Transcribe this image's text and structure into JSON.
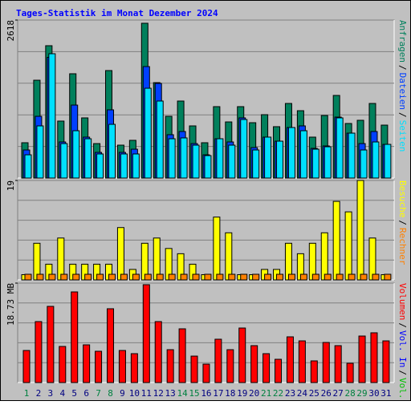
{
  "chart_data": [
    {
      "type": "bar",
      "title": "Tages-Statistik im Monat Dezember 2024",
      "ylim": [
        0,
        2618
      ],
      "yticks": [
        2618
      ],
      "grid_divisions": 5,
      "series": [
        {
          "name": "Anfragen",
          "color": "#00805c",
          "values": [
            585,
            1621,
            2193,
            944,
            1728,
            997,
            571,
            1781,
            545,
            625,
            2565,
            1581,
            1023,
            1276,
            864,
            585,
            1183,
            930,
            1183,
            917,
            1050,
            851,
            1236,
            1116,
            678,
            1037,
            1369,
            904,
            957,
            1236,
            877
          ]
        },
        {
          "name": "Dateien",
          "color": "#0040ff",
          "values": [
            465,
            1023,
            2000,
            598,
            1209,
            678,
            425,
            1130,
            425,
            478,
            1847,
            1568,
            718,
            771,
            571,
            385,
            651,
            598,
            997,
            505,
            678,
            611,
            837,
            864,
            492,
            532,
            1010,
            744,
            571,
            771,
            558
          ]
        },
        {
          "name": "Seiten",
          "color": "#00e0ff",
          "values": [
            385,
            864,
            2060,
            571,
            784,
            651,
            399,
            890,
            399,
            399,
            1488,
            1276,
            651,
            665,
            545,
            372,
            651,
            545,
            970,
            465,
            678,
            611,
            837,
            784,
            478,
            518,
            997,
            744,
            465,
            598,
            558
          ]
        }
      ]
    },
    {
      "type": "bar",
      "ylim": [
        0,
        19
      ],
      "yticks": [
        19
      ],
      "grid_divisions": 5,
      "series": [
        {
          "name": "Besuche",
          "color": "#ffff00",
          "values": [
            1,
            7,
            3,
            8,
            3,
            3,
            3,
            3,
            10,
            2,
            7,
            8,
            6,
            5,
            3,
            1,
            12,
            9,
            1,
            1,
            2,
            2,
            7,
            5,
            7,
            9,
            15,
            13,
            19,
            8,
            1
          ]
        },
        {
          "name": "Rechner",
          "color": "#ff8000",
          "values": [
            1,
            1,
            1,
            1,
            1,
            1,
            1,
            1,
            1,
            1,
            1,
            1,
            1,
            1,
            1,
            1,
            1,
            1,
            1,
            1,
            1,
            1,
            1,
            1,
            1,
            1,
            1,
            1,
            1,
            1,
            1
          ]
        }
      ]
    },
    {
      "type": "bar",
      "ylim": [
        0,
        18.73
      ],
      "yticks": [
        {
          "value": 18.73,
          "label": "18.73 MB"
        }
      ],
      "grid_divisions": 5,
      "categories": [
        "1",
        "2",
        "3",
        "4",
        "5",
        "6",
        "7",
        "8",
        "9",
        "10",
        "11",
        "12",
        "13",
        "14",
        "15",
        "16",
        "17",
        "18",
        "19",
        "20",
        "21",
        "22",
        "23",
        "24",
        "25",
        "26",
        "27",
        "28",
        "29",
        "30",
        "31"
      ],
      "category_colors": [
        "#008040",
        "#000080",
        "#000080",
        "#000080",
        "#000080",
        "#000080",
        "#008040",
        "#008040",
        "#000080",
        "#000080",
        "#000080",
        "#000080",
        "#000080",
        "#008040",
        "#008040",
        "#000080",
        "#000080",
        "#000080",
        "#000080",
        "#000080",
        "#008040",
        "#008040",
        "#000080",
        "#000080",
        "#000080",
        "#000080",
        "#000080",
        "#008040",
        "#008040",
        "#000080",
        "#000080"
      ],
      "series": [
        {
          "name": "Volumen",
          "color": "#ff0000",
          "values": [
            6.04,
            11.48,
            14.35,
            6.8,
            17.07,
            7.1,
            5.89,
            13.9,
            6.04,
            5.44,
            18.43,
            11.48,
            6.19,
            10.12,
            4.98,
            3.47,
            8.16,
            6.19,
            10.27,
            6.95,
            5.44,
            4.38,
            8.61,
            7.85,
            4.08,
            7.55,
            6.95,
            3.63,
            8.76,
            9.37,
            7.85
          ]
        }
      ],
      "legend_extra": [
        {
          "name": "Vol. In",
          "color": "#0000ff"
        },
        {
          "name": "Vol. Out",
          "color": "#00c000"
        }
      ]
    }
  ],
  "legend_separator": "/"
}
